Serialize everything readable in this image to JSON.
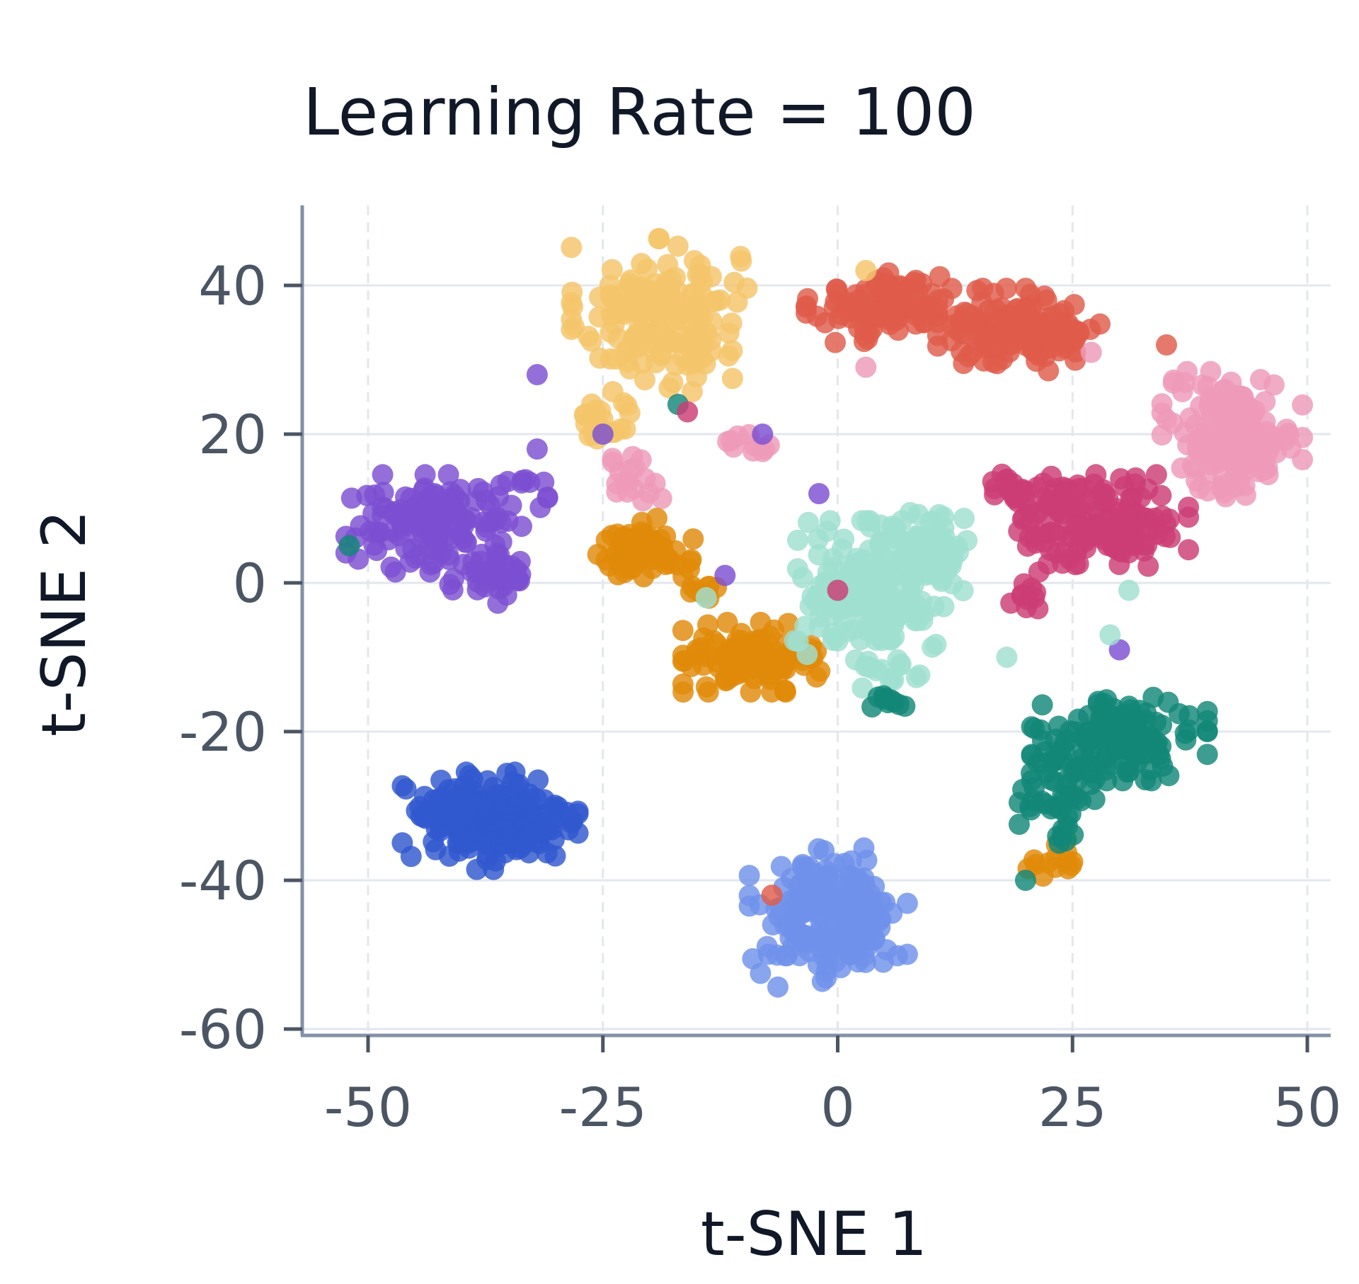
{
  "chart_data": {
    "type": "scatter",
    "title": "Learning Rate = 100",
    "xlabel": "t-SNE 1",
    "ylabel": "t-SNE 2",
    "xlim": [
      -57,
      53
    ],
    "ylim": [
      -62,
      51
    ],
    "xticks": [
      -50,
      -25,
      0,
      25,
      50
    ],
    "yticks": [
      -60,
      -40,
      -20,
      0,
      20,
      40
    ],
    "xtick_labels": [
      "-50",
      "-25",
      "0",
      "25",
      "50"
    ],
    "ytick_labels": [
      "-60",
      "-40",
      "-20",
      "0",
      "20",
      "40"
    ],
    "grid": true,
    "legend": "none",
    "clusters": [
      {
        "color": "#f4c56a",
        "center": [
          -19,
          36
        ],
        "spread": [
          5,
          5.5
        ],
        "n": 170
      },
      {
        "color": "#f4c56a",
        "center": [
          -25,
          22
        ],
        "spread": [
          2,
          2
        ],
        "n": 20
      },
      {
        "color": "#df5b4b",
        "center": [
          6,
          37
        ],
        "spread": [
          5,
          2.5
        ],
        "n": 110
      },
      {
        "color": "#df5b4b",
        "center": [
          20,
          34
        ],
        "spread": [
          5,
          3
        ],
        "n": 130
      },
      {
        "color": "#ee9ab8",
        "center": [
          42,
          20
        ],
        "spread": [
          4,
          4.5
        ],
        "n": 170
      },
      {
        "color": "#ee9ab8",
        "center": [
          -22,
          14
        ],
        "spread": [
          1.8,
          2
        ],
        "n": 18
      },
      {
        "color": "#ee9ab8",
        "center": [
          -10,
          19
        ],
        "spread": [
          1.5,
          0.8
        ],
        "n": 10
      },
      {
        "color": "#cc3d75",
        "center": [
          28,
          8
        ],
        "spread": [
          5,
          3.5
        ],
        "n": 150
      },
      {
        "color": "#cc3d75",
        "center": [
          19,
          13
        ],
        "spread": [
          2,
          1.5
        ],
        "n": 20
      },
      {
        "color": "#cc3d75",
        "center": [
          20,
          -2
        ],
        "spread": [
          1.3,
          1
        ],
        "n": 10
      },
      {
        "color": "#7d4fd2",
        "center": [
          -43,
          8
        ],
        "spread": [
          5,
          3.5
        ],
        "n": 130
      },
      {
        "color": "#7d4fd2",
        "center": [
          -37,
          1
        ],
        "spread": [
          2.5,
          2
        ],
        "n": 40
      },
      {
        "color": "#7d4fd2",
        "center": [
          -35,
          12
        ],
        "spread": [
          2.2,
          1
        ],
        "n": 12
      },
      {
        "color": "#e08a0a",
        "center": [
          -21,
          4
        ],
        "spread": [
          3,
          2.5
        ],
        "n": 70
      },
      {
        "color": "#e08a0a",
        "center": [
          -9,
          -10
        ],
        "spread": [
          4,
          2.5
        ],
        "n": 110
      },
      {
        "color": "#e08a0a",
        "center": [
          -14,
          -1
        ],
        "spread": [
          1.6,
          1
        ],
        "n": 10
      },
      {
        "color": "#e08a0a",
        "center": [
          23,
          -37
        ],
        "spread": [
          1.6,
          1.3
        ],
        "n": 14
      },
      {
        "color": "#9fdfd0",
        "center": [
          4,
          -1
        ],
        "spread": [
          5,
          5
        ],
        "n": 190
      },
      {
        "color": "#9fdfd0",
        "center": [
          10,
          5
        ],
        "spread": [
          2.5,
          3
        ],
        "n": 40
      },
      {
        "color": "#9fdfd0",
        "center": [
          5,
          -12
        ],
        "spread": [
          2,
          1.2
        ],
        "n": 14
      },
      {
        "color": "#128777",
        "center": [
          30,
          -21
        ],
        "spread": [
          5,
          3
        ],
        "n": 140
      },
      {
        "color": "#128777",
        "center": [
          24,
          -28
        ],
        "spread": [
          2.5,
          4
        ],
        "n": 45
      },
      {
        "color": "#128777",
        "center": [
          5,
          -16
        ],
        "spread": [
          1.5,
          0.6
        ],
        "n": 10
      },
      {
        "color": "#3158ce",
        "center": [
          -37,
          -32
        ],
        "spread": [
          5,
          3.5
        ],
        "n": 230
      },
      {
        "color": "#6f91ea",
        "center": [
          -1,
          -45
        ],
        "spread": [
          4.5,
          5
        ],
        "n": 200
      }
    ],
    "points": [
      {
        "x": -32,
        "y": 28,
        "color": "#7d4fd2"
      },
      {
        "x": -32,
        "y": 18,
        "color": "#7d4fd2"
      },
      {
        "x": -25,
        "y": 20,
        "color": "#7d4fd2"
      },
      {
        "x": -8,
        "y": 20,
        "color": "#7d4fd2"
      },
      {
        "x": -2,
        "y": 12,
        "color": "#7d4fd2"
      },
      {
        "x": -12,
        "y": 1,
        "color": "#7d4fd2"
      },
      {
        "x": -17,
        "y": 24,
        "color": "#128777"
      },
      {
        "x": -16,
        "y": 23,
        "color": "#cc3d75"
      },
      {
        "x": 30,
        "y": -9,
        "color": "#7d4fd2"
      },
      {
        "x": -52,
        "y": 5,
        "color": "#128777"
      },
      {
        "x": 20,
        "y": -40,
        "color": "#128777"
      },
      {
        "x": -7,
        "y": -42,
        "color": "#df5b4b"
      },
      {
        "x": 0,
        "y": -1,
        "color": "#cc3d75"
      },
      {
        "x": 3,
        "y": 29,
        "color": "#ee9ab8"
      },
      {
        "x": 27,
        "y": 31,
        "color": "#ee9ab8"
      },
      {
        "x": 3,
        "y": 42,
        "color": "#f4c56a"
      },
      {
        "x": 35,
        "y": 32,
        "color": "#df5b4b"
      },
      {
        "x": 29,
        "y": -7,
        "color": "#9fdfd0"
      },
      {
        "x": 31,
        "y": -1,
        "color": "#9fdfd0"
      },
      {
        "x": 18,
        "y": -10,
        "color": "#9fdfd0"
      },
      {
        "x": -14,
        "y": -2,
        "color": "#9fdfd0"
      }
    ]
  }
}
